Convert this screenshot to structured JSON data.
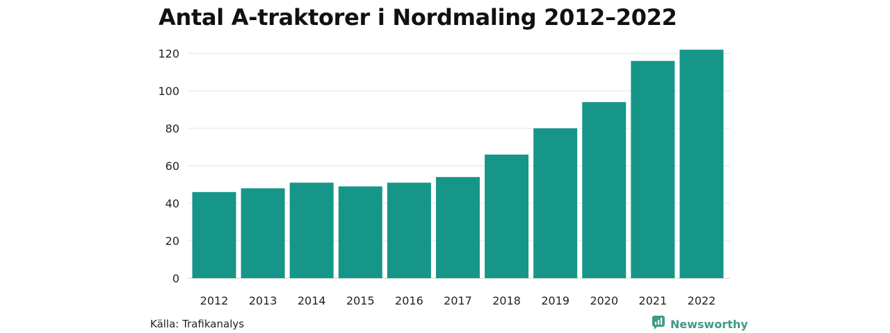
{
  "chart_data": {
    "type": "bar",
    "title": "Antal A-traktorer i Nordmaling 2012–2022",
    "xlabel": "",
    "ylabel": "",
    "categories": [
      "2012",
      "2013",
      "2014",
      "2015",
      "2016",
      "2017",
      "2018",
      "2019",
      "2020",
      "2021",
      "2022"
    ],
    "values": [
      46,
      48,
      51,
      49,
      51,
      54,
      66,
      80,
      94,
      116,
      122
    ],
    "ylim": [
      0,
      120
    ],
    "yticks": [
      "0",
      "20",
      "40",
      "60",
      "80",
      "100",
      "120"
    ],
    "grid": true,
    "bar_color": "#159688"
  },
  "footer": {
    "source": "Källa: Trafikanalys",
    "brand": "Newsworthy",
    "brand_icon": "newsworthy-logo-icon",
    "brand_color": "#3f9b88"
  }
}
